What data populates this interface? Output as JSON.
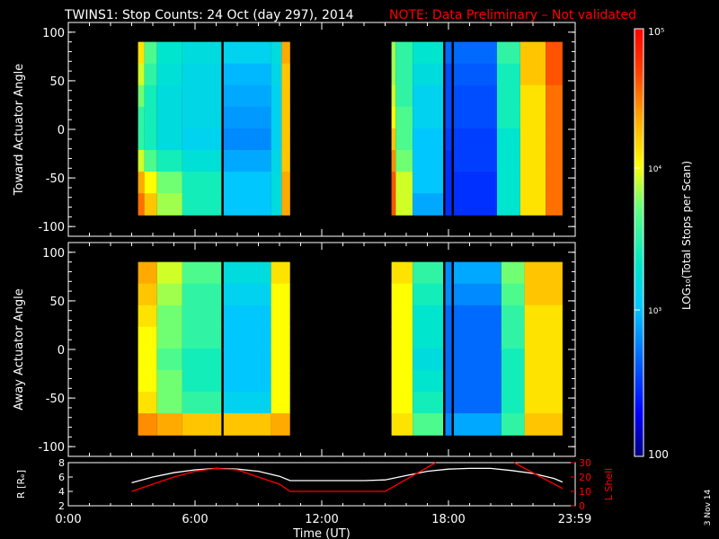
{
  "header": {
    "title": "TWINS1: Stop Counts: 24 Oct (day 297), 2014",
    "note": "NOTE: Data Preliminary – Not validated",
    "note_color": "#ff0000"
  },
  "side_stamp": "3 Nov 14",
  "colorbar": {
    "label": "LOG₁₀(Total Stops per Scan)",
    "ticks": [
      "10⁵",
      "10⁴",
      "10³",
      "100"
    ],
    "range": [
      100,
      100000
    ],
    "scale": "log",
    "colormap": [
      "#000080",
      "#0000ff",
      "#0060ff",
      "#00c8ff",
      "#00e8c8",
      "#60ff80",
      "#ffff00",
      "#ffa000",
      "#ff4000",
      "#ff0000"
    ]
  },
  "chart_data": [
    {
      "type": "heatmap",
      "panel": "top",
      "ylabel": "Toward Actuator Angle",
      "ylim": [
        -110,
        110
      ],
      "yticks": [
        100,
        50,
        0,
        -50,
        -100
      ],
      "x_unit": "hours UT",
      "xlim": [
        0,
        24
      ],
      "data_extent_y": [
        -88,
        90
      ],
      "coverage_intervals": [
        [
          3.3,
          10.5
        ],
        [
          15.3,
          23.4
        ]
      ],
      "data_gaps": [
        [
          7.25,
          7.35
        ],
        [
          17.75,
          17.85
        ],
        [
          18.15,
          18.25
        ]
      ],
      "columns": [
        {
          "x0": 3.3,
          "x1": 3.6,
          "levels": [
            4.1,
            3.9,
            3.7,
            3.5,
            3.5,
            3.9,
            4.3,
            4.5
          ]
        },
        {
          "x0": 3.6,
          "x1": 4.2,
          "levels": [
            3.6,
            3.5,
            3.4,
            3.4,
            3.4,
            3.6,
            4.0,
            4.2
          ]
        },
        {
          "x0": 4.2,
          "x1": 5.4,
          "levels": [
            3.3,
            3.25,
            3.2,
            3.2,
            3.2,
            3.4,
            3.7,
            3.8
          ]
        },
        {
          "x0": 5.4,
          "x1": 7.25,
          "levels": [
            3.2,
            3.15,
            3.15,
            3.15,
            3.1,
            3.25,
            3.4,
            3.4
          ]
        },
        {
          "x0": 7.35,
          "x1": 9.6,
          "levels": [
            3.1,
            2.95,
            2.9,
            2.85,
            2.8,
            2.9,
            3.0,
            3.0
          ]
        },
        {
          "x0": 9.6,
          "x1": 10.1,
          "levels": [
            3.2,
            3.15,
            3.1,
            3.1,
            3.1,
            3.15,
            3.2,
            3.2
          ]
        },
        {
          "x0": 10.1,
          "x1": 10.5,
          "levels": [
            4.3,
            4.2,
            4.2,
            4.2,
            4.2,
            4.2,
            4.3,
            4.3
          ]
        },
        {
          "x0": 15.3,
          "x1": 15.5,
          "levels": [
            3.8,
            3.8,
            3.9,
            4.0,
            4.2,
            4.4,
            4.6,
            4.6
          ]
        },
        {
          "x0": 15.5,
          "x1": 16.3,
          "levels": [
            3.5,
            3.5,
            3.5,
            3.6,
            3.6,
            3.7,
            3.9,
            3.9
          ]
        },
        {
          "x0": 16.3,
          "x1": 17.75,
          "levels": [
            3.3,
            3.2,
            3.1,
            3.1,
            3.0,
            3.0,
            3.0,
            2.9
          ]
        },
        {
          "x0": 17.85,
          "x1": 18.15,
          "levels": [
            2.7,
            2.6,
            2.6,
            2.6,
            2.55,
            2.5,
            2.5,
            2.5
          ]
        },
        {
          "x0": 18.25,
          "x1": 20.3,
          "levels": [
            2.7,
            2.65,
            2.6,
            2.6,
            2.55,
            2.55,
            2.5,
            2.5
          ]
        },
        {
          "x0": 20.3,
          "x1": 21.4,
          "levels": [
            3.5,
            3.4,
            3.4,
            3.4,
            3.3,
            3.3,
            3.3,
            3.3
          ]
        },
        {
          "x0": 21.4,
          "x1": 22.6,
          "levels": [
            4.2,
            4.2,
            4.1,
            4.1,
            4.1,
            4.1,
            4.1,
            4.1
          ]
        },
        {
          "x0": 22.6,
          "x1": 23.4,
          "levels": [
            4.6,
            4.6,
            4.5,
            4.5,
            4.5,
            4.5,
            4.5,
            4.5
          ]
        }
      ]
    },
    {
      "type": "heatmap",
      "panel": "middle",
      "ylabel": "Away Actuator Angle",
      "ylim": [
        -110,
        110
      ],
      "yticks": [
        100,
        50,
        0,
        -50,
        -100
      ],
      "x_unit": "hours UT",
      "xlim": [
        0,
        24
      ],
      "data_extent_y": [
        -88,
        90
      ],
      "coverage_intervals": [
        [
          3.3,
          10.5
        ],
        [
          15.3,
          23.4
        ]
      ],
      "data_gaps": [
        [
          7.25,
          7.35
        ],
        [
          17.75,
          17.85
        ],
        [
          18.15,
          18.25
        ]
      ],
      "columns": [
        {
          "x0": 3.3,
          "x1": 4.2,
          "levels": [
            4.3,
            4.2,
            4.1,
            4.0,
            4.0,
            4.0,
            4.1,
            4.4
          ]
        },
        {
          "x0": 4.2,
          "x1": 5.4,
          "levels": [
            3.9,
            3.8,
            3.7,
            3.7,
            3.6,
            3.7,
            3.7,
            4.3
          ]
        },
        {
          "x0": 5.4,
          "x1": 7.25,
          "levels": [
            3.6,
            3.5,
            3.5,
            3.5,
            3.4,
            3.4,
            3.5,
            4.2
          ]
        },
        {
          "x0": 7.35,
          "x1": 9.6,
          "levels": [
            3.2,
            3.1,
            3.0,
            3.0,
            3.0,
            3.0,
            3.1,
            4.2
          ]
        },
        {
          "x0": 9.6,
          "x1": 10.5,
          "levels": [
            4.1,
            4.0,
            4.0,
            4.0,
            4.0,
            4.0,
            4.0,
            4.3
          ]
        },
        {
          "x0": 15.3,
          "x1": 16.3,
          "levels": [
            4.1,
            4.0,
            4.0,
            4.0,
            4.0,
            4.0,
            4.0,
            4.1
          ]
        },
        {
          "x0": 16.3,
          "x1": 17.75,
          "levels": [
            3.5,
            3.4,
            3.3,
            3.3,
            3.2,
            3.3,
            3.4,
            3.6
          ]
        },
        {
          "x0": 17.85,
          "x1": 18.15,
          "levels": [
            2.8,
            2.8,
            2.7,
            2.7,
            2.7,
            2.7,
            2.7,
            2.8
          ]
        },
        {
          "x0": 18.25,
          "x1": 20.5,
          "levels": [
            2.9,
            2.8,
            2.7,
            2.7,
            2.7,
            2.7,
            2.7,
            2.9
          ]
        },
        {
          "x0": 20.5,
          "x1": 21.6,
          "levels": [
            3.7,
            3.6,
            3.5,
            3.5,
            3.4,
            3.4,
            3.4,
            3.5
          ]
        },
        {
          "x0": 21.6,
          "x1": 23.4,
          "levels": [
            4.2,
            4.2,
            4.1,
            4.1,
            4.1,
            4.1,
            4.1,
            4.2
          ]
        }
      ]
    },
    {
      "type": "line",
      "panel": "bottom",
      "xlabel": "Time (UT)",
      "xticks": [
        "0:00",
        "6:00",
        "12:00",
        "18:00",
        "23:59"
      ],
      "xlim": [
        0,
        24
      ],
      "left_axis": {
        "label": "R [Rₑ]",
        "ylim": [
          2,
          8
        ],
        "ticks": [
          8,
          6,
          4,
          2
        ],
        "color": "#ffffff"
      },
      "right_axis": {
        "label": "L Shell",
        "ylim": [
          0,
          30
        ],
        "ticks": [
          30,
          20,
          10,
          0
        ],
        "color": "#ff0000"
      },
      "series": [
        {
          "axis": "left",
          "color": "#ffffff",
          "x": [
            3.0,
            4.0,
            5.0,
            6.0,
            7.0,
            8.0,
            9.0,
            10.0,
            10.5,
            12.0,
            14.0,
            15.0,
            16.0,
            17.0,
            18.0,
            19.0,
            20.0,
            21.0,
            22.0,
            23.0,
            23.4
          ],
          "values": [
            5.2,
            6.0,
            6.6,
            7.0,
            7.2,
            7.1,
            6.8,
            6.1,
            5.5,
            5.5,
            5.5,
            5.6,
            6.2,
            6.8,
            7.1,
            7.2,
            7.2,
            6.9,
            6.5,
            5.8,
            5.3
          ]
        },
        {
          "axis": "right",
          "color": "#ff0000",
          "x": [
            3.0,
            4.0,
            5.0,
            6.0,
            7.0,
            8.0,
            9.0,
            10.0,
            10.5,
            12.0,
            14.0,
            15.0,
            17.4
          ],
          "values": [
            10.0,
            15.0,
            20.0,
            24.0,
            26.0,
            25.0,
            20.0,
            15.0,
            10.0,
            10.0,
            10.0,
            10.0,
            30.0
          ]
        },
        {
          "axis": "right",
          "color": "#ff0000",
          "x": [
            21.1,
            23.4
          ],
          "values": [
            30.0,
            12.0
          ]
        }
      ]
    }
  ]
}
